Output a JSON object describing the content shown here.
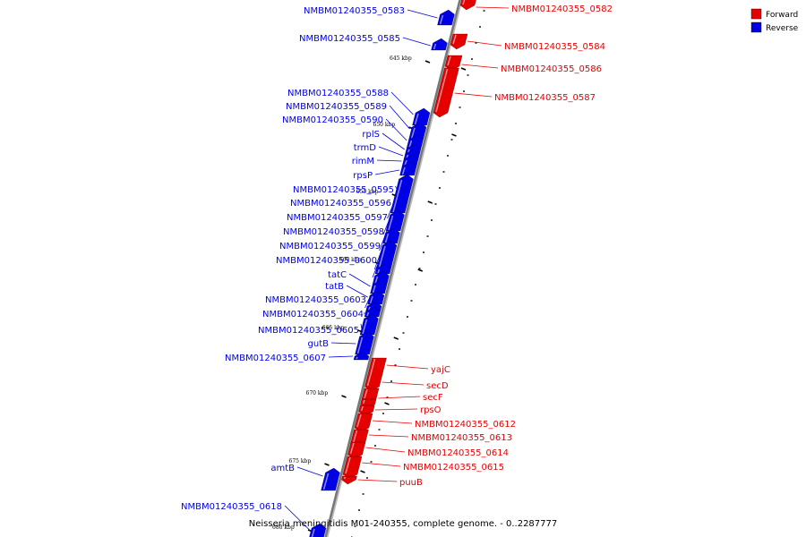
{
  "footer_text": "Neisseria meningitidis M01-240355, complete genome. - 0..2287777",
  "legend": [
    {
      "label": "Forward",
      "color": "#e60000"
    },
    {
      "label": "Reverse",
      "color": "#0000e6"
    }
  ],
  "colors": {
    "forward": "#e60000",
    "reverse": "#0000e6",
    "backbone": "#777777"
  },
  "ticks": [
    {
      "label": "645 kbp"
    },
    {
      "label": "650 kbp"
    },
    {
      "label": "655 kbp"
    },
    {
      "label": "660 kbp"
    },
    {
      "label": "665 kbp"
    },
    {
      "label": "670 kbp"
    },
    {
      "label": "675 kbp"
    },
    {
      "label": "680 kbp"
    }
  ],
  "forward_genes": [
    {
      "label": "NMBM01240355_0582"
    },
    {
      "label": "NMBM01240355_0584"
    },
    {
      "label": "NMBM01240355_0586"
    },
    {
      "label": "NMBM01240355_0587"
    },
    {
      "label": "yajC"
    },
    {
      "label": "secD"
    },
    {
      "label": "secF"
    },
    {
      "label": "rpsO"
    },
    {
      "label": "NMBM01240355_0612"
    },
    {
      "label": "NMBM01240355_0613"
    },
    {
      "label": "NMBM01240355_0614"
    },
    {
      "label": "NMBM01240355_0615"
    },
    {
      "label": "puuB"
    }
  ],
  "reverse_genes": [
    {
      "label": "NMBM01240355_0583"
    },
    {
      "label": "NMBM01240355_0585"
    },
    {
      "label": "NMBM01240355_0588"
    },
    {
      "label": "NMBM01240355_0589"
    },
    {
      "label": "NMBM01240355_0590"
    },
    {
      "label": "rplS"
    },
    {
      "label": "trmD"
    },
    {
      "label": "rimM"
    },
    {
      "label": "rpsP"
    },
    {
      "label": "NMBM01240355_0595"
    },
    {
      "label": "NMBM01240355_0596"
    },
    {
      "label": "NMBM01240355_0597"
    },
    {
      "label": "NMBM01240355_0598"
    },
    {
      "label": "NMBM01240355_0599"
    },
    {
      "label": "NMBM01240355_0600"
    },
    {
      "label": "tatC"
    },
    {
      "label": "tatB"
    },
    {
      "label": "NMBM01240355_0603"
    },
    {
      "label": "NMBM01240355_0604"
    },
    {
      "label": "NMBM01240355_0605"
    },
    {
      "label": "gutB"
    },
    {
      "label": "NMBM01240355_0607"
    },
    {
      "label": "amtB"
    },
    {
      "label": "NMBM01240355_0618"
    }
  ]
}
